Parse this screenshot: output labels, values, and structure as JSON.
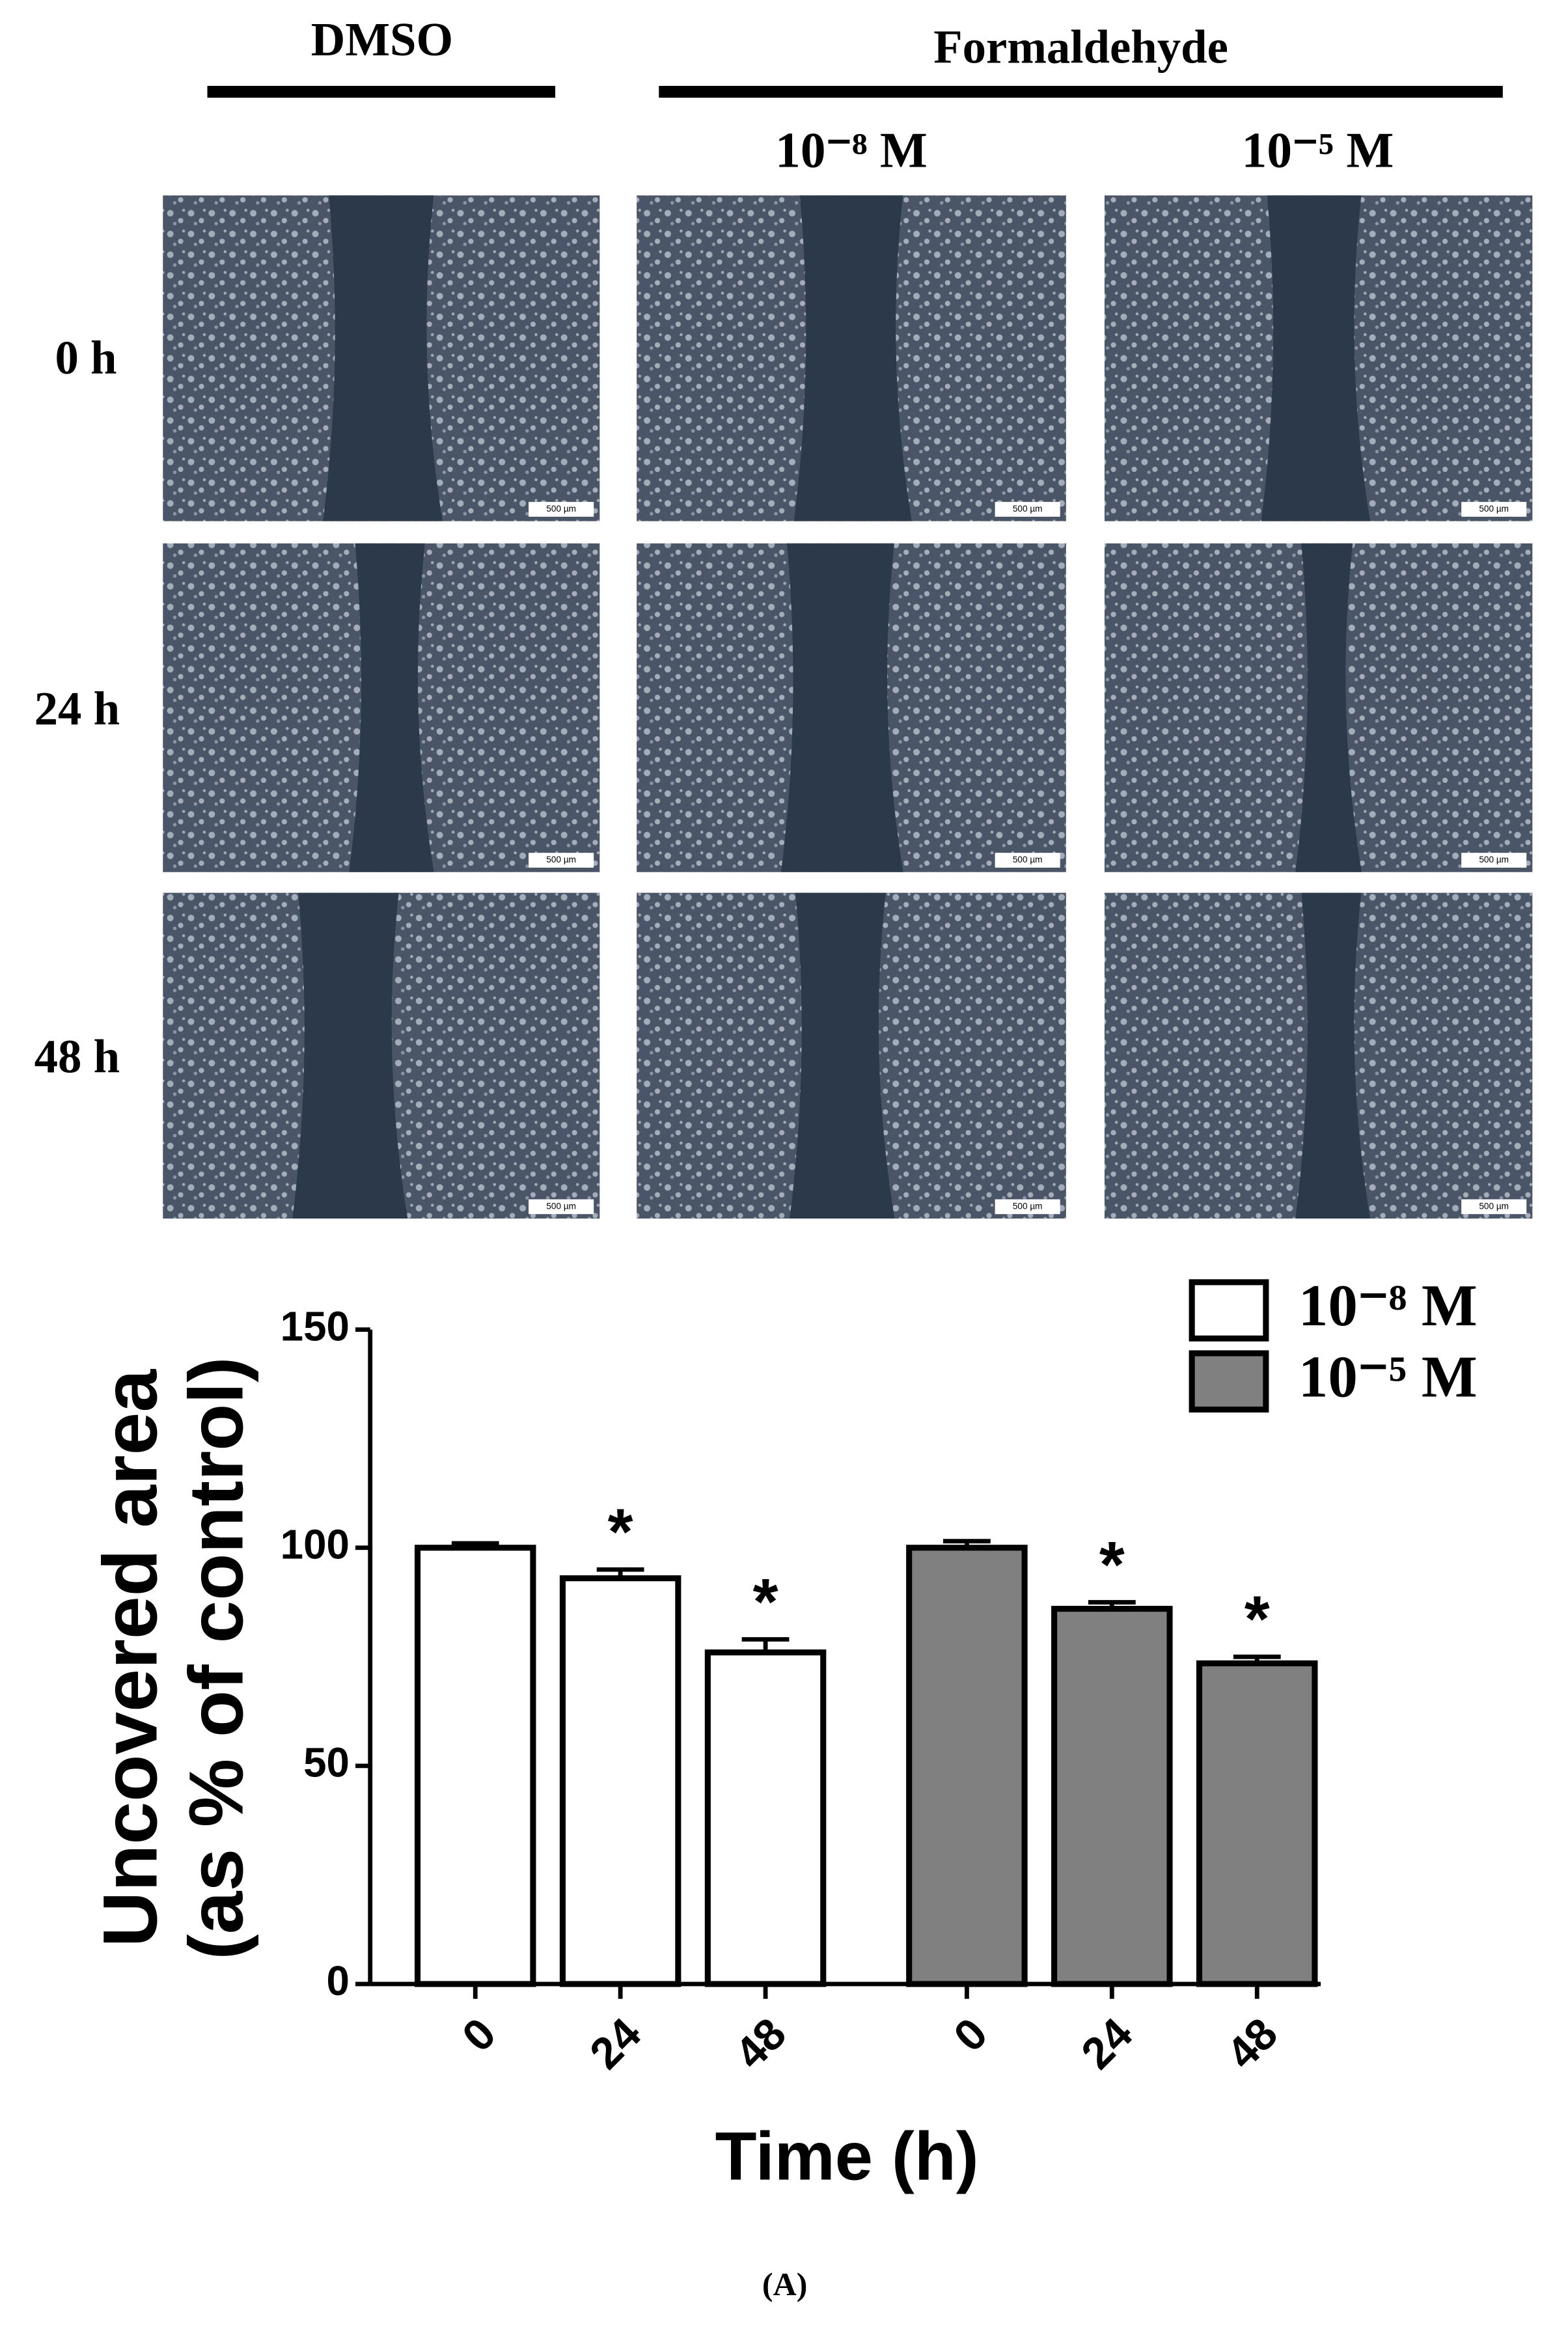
{
  "figure": {
    "column_groups": [
      "DMSO",
      "Formaldehyde"
    ],
    "columns": [
      "10⁻⁸ M",
      "10⁻⁵ M"
    ],
    "rows": [
      "0 h",
      "24 h",
      "48 h"
    ],
    "scale_bar": "500 µm",
    "panel": "(A)"
  },
  "chart_data": {
    "type": "bar",
    "y_label": [
      "Uncovered area",
      "(as % of control)"
    ],
    "x_label": "Time (h)",
    "categories": [
      "0",
      "24",
      "48",
      "0",
      "24",
      "48"
    ],
    "series": [
      {
        "name": "10⁻⁸ M",
        "color": "#ffffff",
        "values": [
          100,
          93,
          76,
          null,
          null,
          null
        ],
        "errors": [
          1,
          2,
          3,
          null,
          null,
          null
        ]
      },
      {
        "name": "10⁻⁵ M",
        "color": "#808080",
        "values": [
          null,
          null,
          null,
          100,
          86,
          73.5
        ],
        "errors": [
          null,
          null,
          null,
          1.5,
          1.5,
          1.5
        ]
      }
    ],
    "annotations": [
      null,
      "*",
      "*",
      null,
      "*",
      "*"
    ],
    "ylim": [
      0,
      150
    ],
    "yticks": [
      0,
      50,
      100,
      150
    ],
    "legend": "upper right"
  }
}
